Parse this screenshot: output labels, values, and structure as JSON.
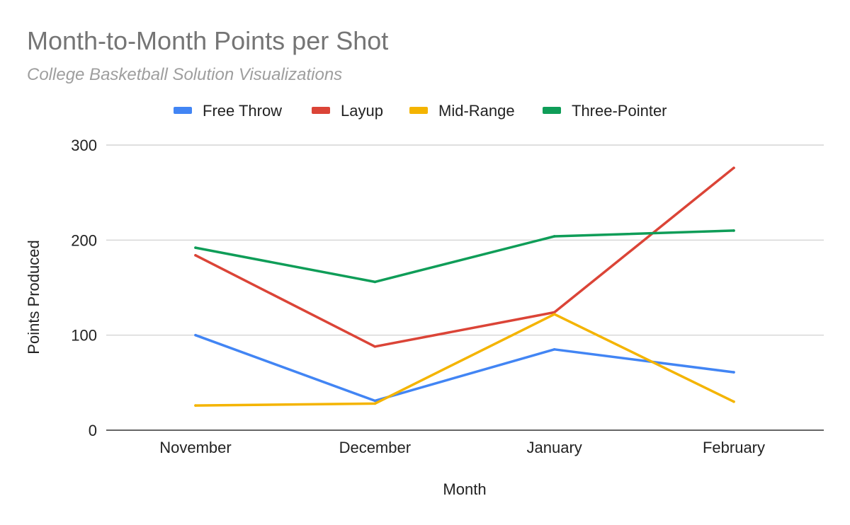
{
  "chart_data": {
    "type": "line",
    "title": "Month-to-Month Points per Shot",
    "subtitle": "College Basketball Solution Visualizations",
    "xlabel": "Month",
    "ylabel": "Points Produced",
    "categories": [
      "November",
      "December",
      "January",
      "February"
    ],
    "ylim": [
      0,
      300
    ],
    "yticks": [
      "0",
      "100",
      "200",
      "300"
    ],
    "grid": true,
    "legend_position": "top",
    "series": [
      {
        "name": "Free Throw",
        "color": "#4285f4",
        "values": [
          100,
          31,
          85,
          61
        ]
      },
      {
        "name": "Layup",
        "color": "#db4437",
        "values": [
          184,
          88,
          124,
          276
        ]
      },
      {
        "name": "Mid-Range",
        "color": "#f4b400",
        "values": [
          26,
          28,
          122,
          30
        ]
      },
      {
        "name": "Three-Pointer",
        "color": "#0f9d58",
        "values": [
          192,
          156,
          204,
          210
        ]
      }
    ]
  }
}
